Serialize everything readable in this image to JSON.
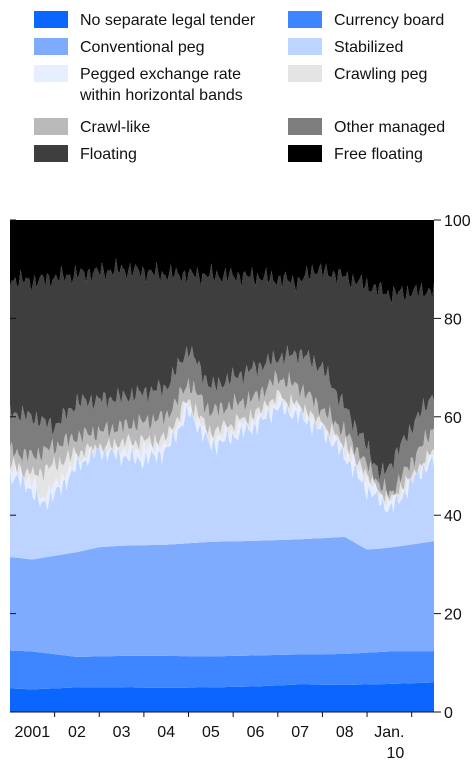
{
  "legend": {
    "items": [
      {
        "label": "No separate legal tender",
        "color": "#0a66ff"
      },
      {
        "label": "Currency board",
        "color": "#3d86ff"
      },
      {
        "label": "Conventional peg",
        "color": "#7fabff"
      },
      {
        "label": "Stabilized",
        "color": "#bcd4ff"
      },
      {
        "label": "Pegged exchange rate\nwithin horizontal bands",
        "color": "#e6eeff"
      },
      {
        "label": "Crawling peg",
        "color": "#e4e4e4"
      },
      {
        "label": "Crawl-like",
        "color": "#b9b9b9"
      },
      {
        "label": "Other managed",
        "color": "#7d7d7d"
      },
      {
        "label": "Floating",
        "color": "#3e3e3e"
      },
      {
        "label": "Free floating",
        "color": "#000000"
      }
    ]
  },
  "chart_data": {
    "type": "area",
    "stacked": true,
    "x_tick_labels": [
      "2001",
      "02",
      "03",
      "04",
      "05",
      "06",
      "07",
      "08",
      "Jan.\n10"
    ],
    "y_ticks": [
      0,
      20,
      40,
      60,
      80,
      100
    ],
    "ylim": [
      0,
      100
    ],
    "xlim": [
      2000.5,
      2010.0
    ],
    "y_axis_position": "right",
    "legend_position": "top",
    "cumulative_upper_bounds": [
      {
        "name": "No separate legal tender",
        "x": [
          2000.5,
          2001.0,
          2002.0,
          2003.0,
          2004.0,
          2005.0,
          2006.0,
          2007.0,
          2008.0,
          2009.0,
          2010.0
        ],
        "values": [
          4.8,
          4.6,
          5.0,
          5.0,
          4.9,
          5.0,
          5.2,
          5.6,
          5.5,
          5.7,
          6.0
        ]
      },
      {
        "name": "Currency board",
        "x": [
          2000.5,
          2001.0,
          2002.0,
          2003.0,
          2004.0,
          2005.0,
          2006.0,
          2007.0,
          2008.0,
          2009.0,
          2010.0
        ],
        "values": [
          12.5,
          12.3,
          11.2,
          11.4,
          11.4,
          11.3,
          11.5,
          11.7,
          11.8,
          12.3,
          12.3
        ]
      },
      {
        "name": "Conventional peg",
        "x": [
          2000.5,
          2001.0,
          2002.0,
          2002.5,
          2003.0,
          2004.0,
          2005.0,
          2006.0,
          2007.0,
          2008.0,
          2008.5,
          2009.0,
          2010.0
        ],
        "values": [
          31.5,
          31.0,
          32.5,
          33.5,
          33.8,
          34.0,
          34.6,
          34.8,
          35.1,
          35.6,
          33.0,
          33.4,
          34.7
        ]
      },
      {
        "name": "Stabilized",
        "x": [
          2000.5,
          2000.9,
          2001.2,
          2001.6,
          2002.0,
          2002.5,
          2003.0,
          2003.5,
          2004.0,
          2004.5,
          2005.0,
          2005.5,
          2006.0,
          2006.5,
          2007.0,
          2007.5,
          2008.0,
          2008.5,
          2008.8,
          2009.0,
          2009.3,
          2009.6,
          2010.0
        ],
        "values": [
          48.0,
          46.0,
          42.0,
          45.0,
          50.0,
          53.0,
          52.0,
          51.0,
          53.0,
          61.0,
          54.0,
          56.0,
          58.0,
          62.0,
          60.0,
          57.0,
          52.0,
          45.0,
          43.0,
          41.0,
          44.0,
          48.0,
          51.0
        ]
      },
      {
        "name": "Pegged exchange rate\nwithin horizontal bands",
        "x": [
          2000.5,
          2001.0,
          2001.2,
          2002.0,
          2003.0,
          2004.0,
          2004.5,
          2005.0,
          2006.0,
          2006.5,
          2007.0,
          2008.0,
          2008.8,
          2009.0,
          2009.5,
          2010.0
        ],
        "values": [
          49.0,
          47.0,
          43.0,
          51.0,
          53.0,
          54.0,
          62.0,
          55.0,
          59.0,
          63.0,
          61.0,
          53.0,
          43.5,
          42.0,
          46.0,
          52.0
        ]
      },
      {
        "name": "Crawling peg",
        "x": [
          2000.5,
          2001.0,
          2002.0,
          2003.0,
          2004.0,
          2004.5,
          2005.0,
          2006.0,
          2006.5,
          2007.0,
          2008.0,
          2008.8,
          2009.0,
          2010.0
        ],
        "values": [
          50.0,
          48.0,
          52.5,
          54.5,
          55.5,
          63.5,
          56.5,
          60.5,
          64.0,
          62.0,
          54.5,
          44.0,
          42.5,
          53.0
        ]
      },
      {
        "name": "Crawl-like",
        "x": [
          2000.5,
          2001.0,
          2002.0,
          2003.0,
          2004.0,
          2004.5,
          2005.0,
          2006.0,
          2006.5,
          2007.0,
          2008.0,
          2008.8,
          2009.0,
          2010.0
        ],
        "values": [
          53.0,
          52.0,
          56.0,
          58.0,
          60.0,
          67.0,
          61.0,
          64.0,
          68.0,
          66.0,
          57.0,
          46.0,
          44.0,
          58.0
        ]
      },
      {
        "name": "Other managed",
        "x": [
          2000.5,
          2001.0,
          2001.5,
          2002.0,
          2003.0,
          2004.0,
          2004.5,
          2005.0,
          2006.0,
          2006.5,
          2007.0,
          2007.5,
          2008.0,
          2008.5,
          2008.8,
          2009.0,
          2009.5,
          2010.0
        ],
        "values": [
          61.0,
          60.0,
          58.0,
          63.0,
          64.0,
          66.0,
          74.0,
          66.0,
          70.0,
          72.0,
          73.0,
          70.0,
          62.0,
          54.0,
          48.0,
          50.0,
          58.0,
          65.0
        ]
      },
      {
        "name": "Floating",
        "x": [
          2000.5,
          2001.0,
          2002.0,
          2003.0,
          2004.0,
          2005.0,
          2006.0,
          2007.0,
          2007.3,
          2008.0,
          2009.0,
          2010.0
        ],
        "values": [
          88.0,
          87.5,
          89.0,
          90.0,
          89.0,
          88.8,
          88.5,
          87.5,
          90.0,
          88.5,
          85.0,
          85.8
        ]
      },
      {
        "name": "Free floating",
        "x": [
          2000.5,
          2010.0
        ],
        "values": [
          100.0,
          100.0
        ]
      }
    ]
  }
}
